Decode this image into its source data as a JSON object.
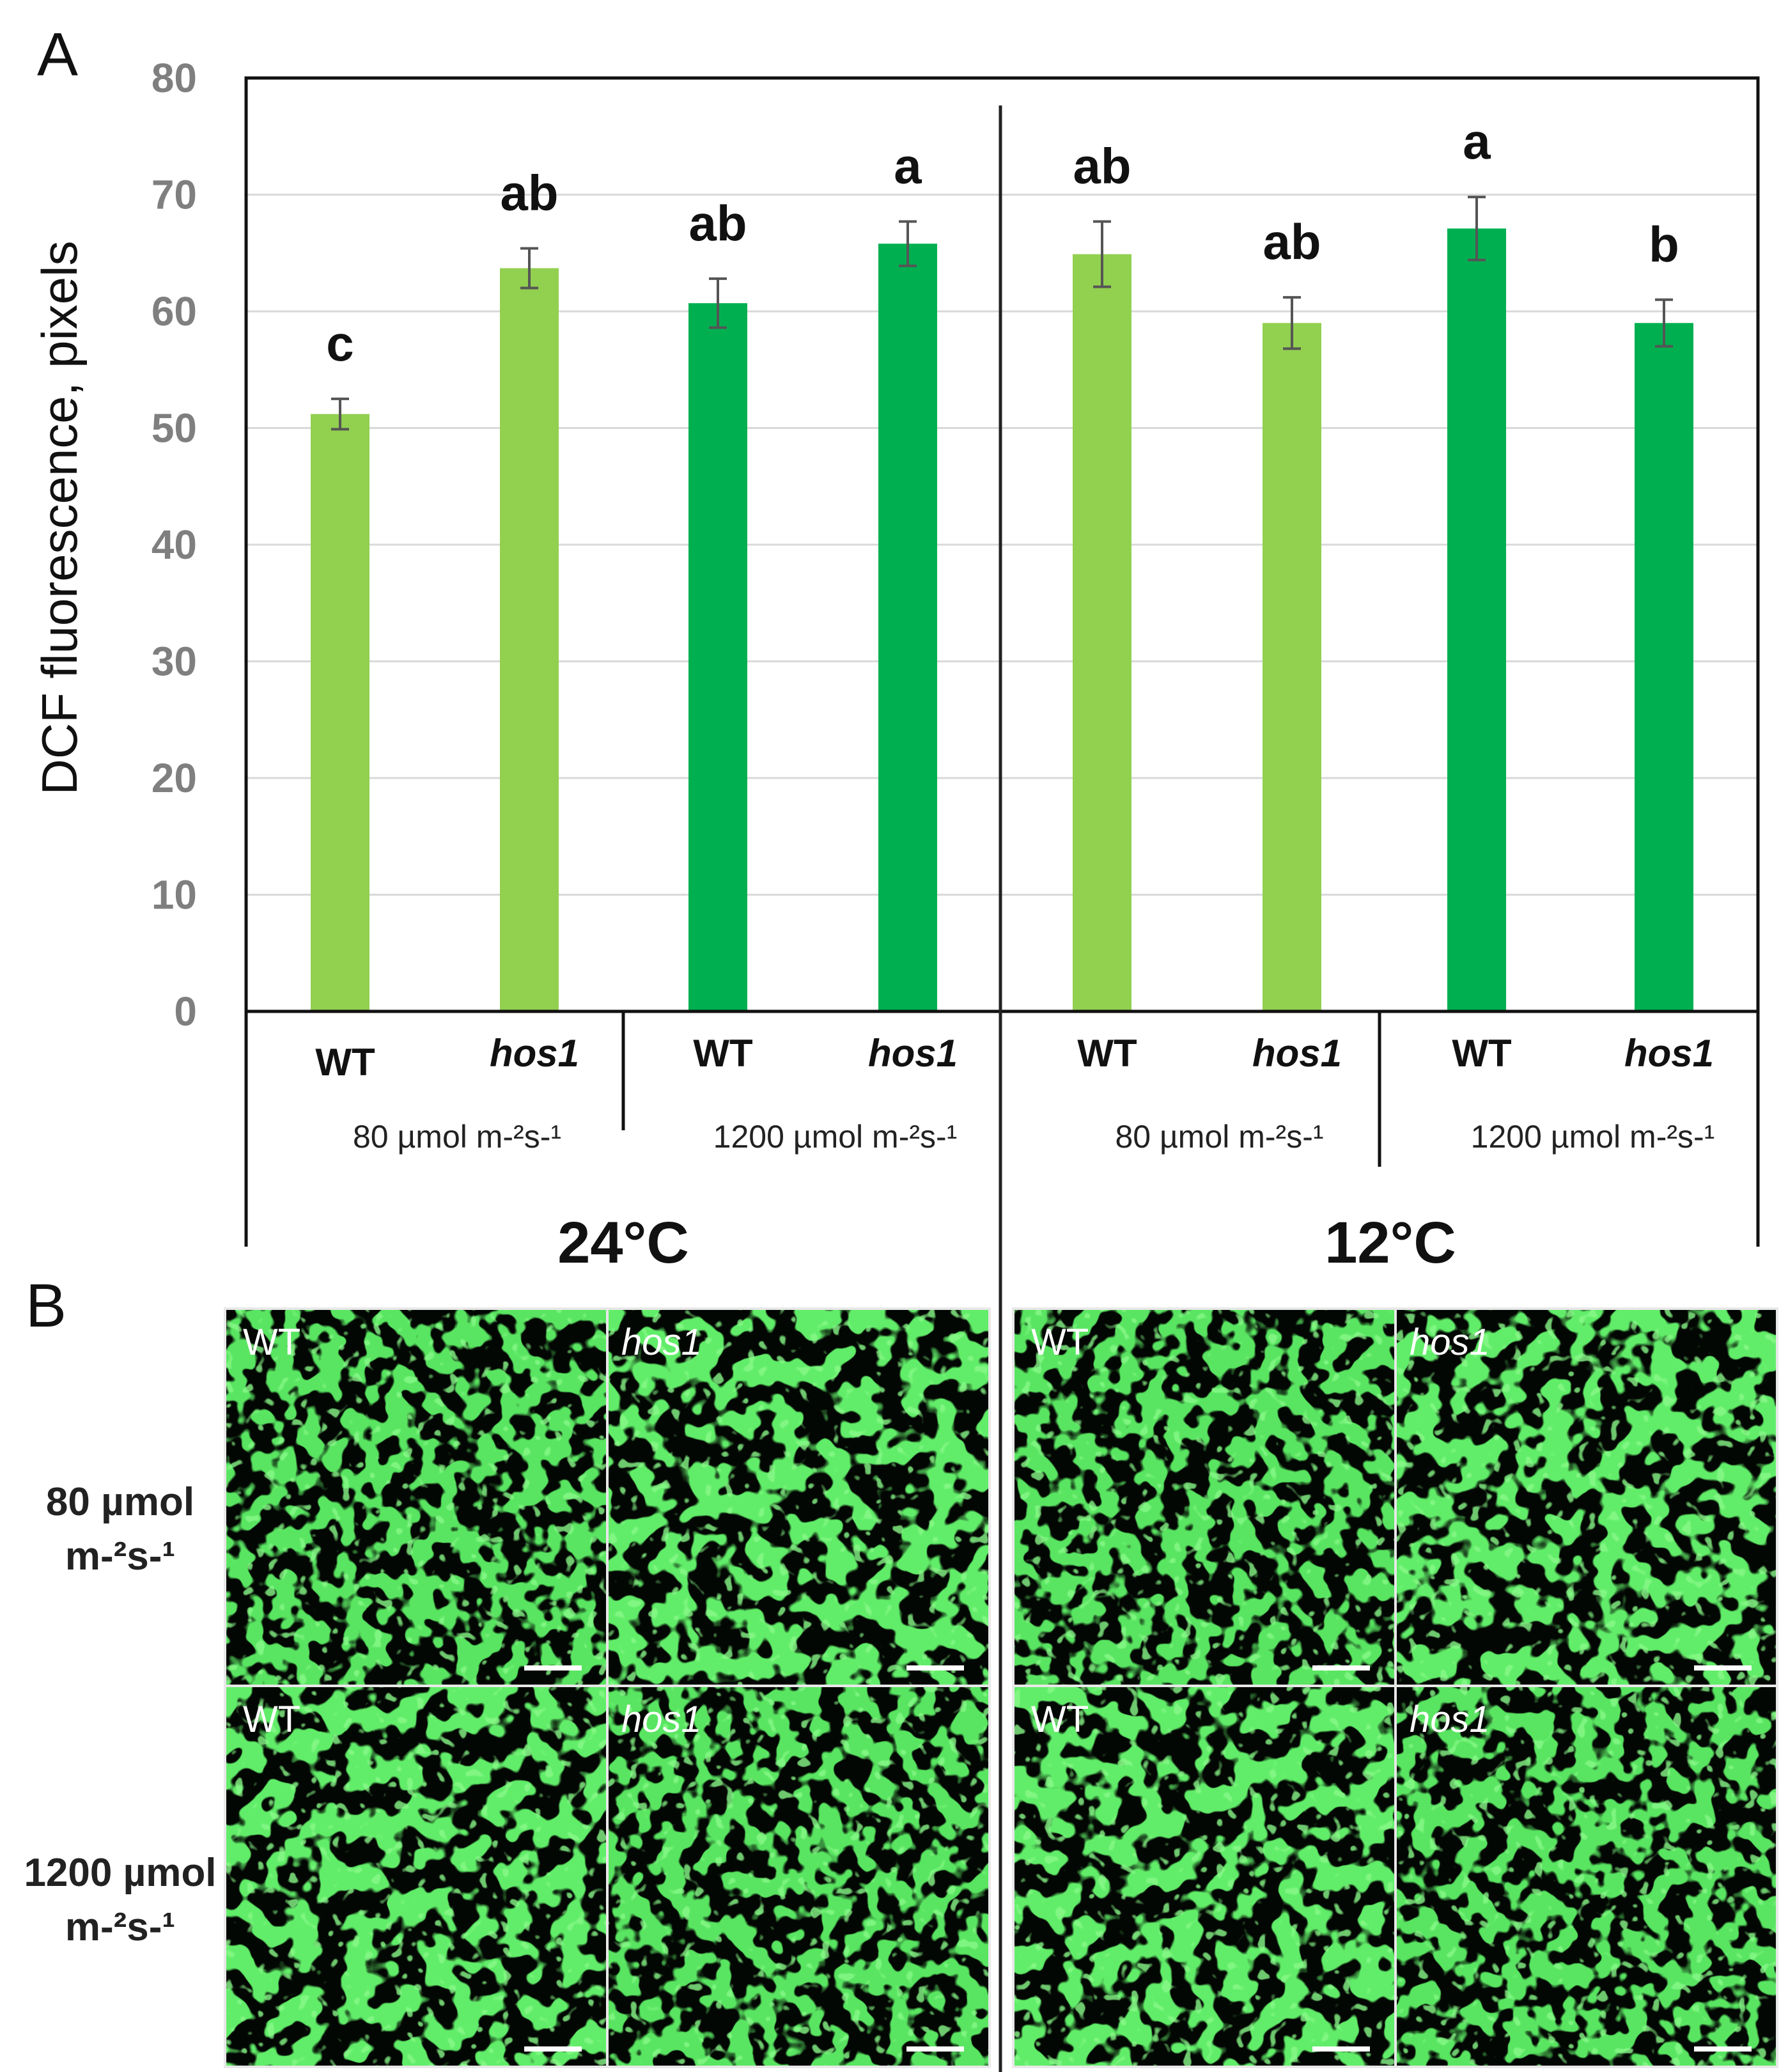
{
  "figure": {
    "panel_a_letter": "A",
    "panel_b_letter": "B"
  },
  "chart_data": {
    "type": "bar",
    "ylabel": "DCF fluorescence, pixels",
    "ylim": [
      0,
      80
    ],
    "yticks": [
      0,
      10,
      20,
      30,
      40,
      50,
      60,
      70,
      80
    ],
    "grid": true,
    "groups": [
      {
        "temperature": "24°C",
        "light_groups": [
          {
            "light": "80 µmol m-²s-¹",
            "color": "#92d050",
            "bars": [
              {
                "genotype": "WT",
                "italic": false,
                "value": 51.2,
                "error": 1.3,
                "letter": "c"
              },
              {
                "genotype": "hos1",
                "italic": true,
                "value": 63.7,
                "error": 1.7,
                "letter": "ab"
              }
            ]
          },
          {
            "light": "1200 µmol m-²s-¹",
            "color": "#00b050",
            "bars": [
              {
                "genotype": "WT",
                "italic": false,
                "value": 60.7,
                "error": 2.1,
                "letter": "ab"
              },
              {
                "genotype": "hos1",
                "italic": true,
                "value": 65.8,
                "error": 1.9,
                "letter": "a"
              }
            ]
          }
        ]
      },
      {
        "temperature": "12°C",
        "light_groups": [
          {
            "light": "80 µmol m-²s-¹",
            "color": "#92d050",
            "bars": [
              {
                "genotype": "WT",
                "italic": false,
                "value": 64.9,
                "error": 2.8,
                "letter": "ab"
              },
              {
                "genotype": "hos1",
                "italic": true,
                "value": 59.0,
                "error": 2.2,
                "letter": "ab"
              }
            ]
          },
          {
            "light": "1200 µmol m-²s-¹",
            "color": "#00b050",
            "bars": [
              {
                "genotype": "WT",
                "italic": false,
                "value": 67.1,
                "error": 2.7,
                "letter": "a"
              },
              {
                "genotype": "hos1",
                "italic": true,
                "value": 59.0,
                "error": 2.0,
                "letter": "b"
              }
            ]
          }
        ]
      }
    ]
  },
  "panel_b": {
    "row_labels": [
      {
        "line1": "80 µmol",
        "line2": "m-²s-¹"
      },
      {
        "line1": "1200 µmol",
        "line2": "m-²s-¹"
      }
    ],
    "image_labels": [
      [
        "WT",
        "hos1",
        "WT",
        "hos1"
      ],
      [
        "WT",
        "hos1",
        "WT",
        "hos1"
      ]
    ],
    "image_italic": [
      false,
      true,
      false,
      true
    ],
    "colors": {
      "cell_outline": "#19c81e",
      "background": "#030703"
    }
  }
}
